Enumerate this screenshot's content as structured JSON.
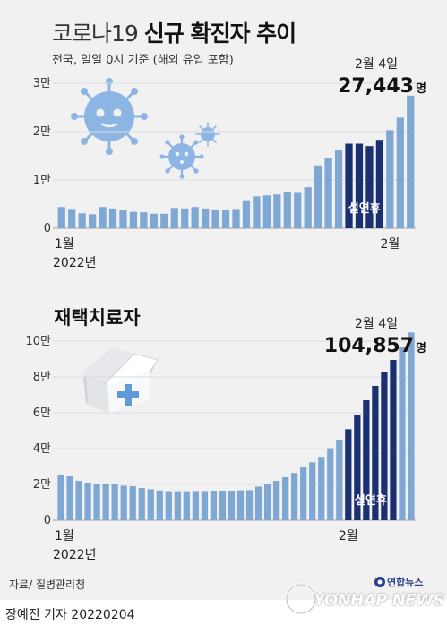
{
  "header": {
    "title_light": "코로나19",
    "title_bold": "신규 확진자 추이",
    "subtitle": "전국, 일일 0시 기준 (해외 유입 포함)"
  },
  "footer": {
    "source": "자료/ 질병관리청",
    "reporter": "장예진 기자  20220204",
    "logo_ko": "연합뉴스",
    "logo_en": "YONHAP NEWS"
  },
  "colors": {
    "background": "#f1f1f2",
    "bar_light": "#7fa7d4",
    "bar_holiday": "#1b3070",
    "badge_text": "#ffffff",
    "grid": "#d9dbde"
  },
  "icons": [
    "virus-icon",
    "house-cross-icon",
    "yonhap-logo-icon"
  ],
  "chart_data": [
    {
      "type": "bar",
      "title": "",
      "x_labels": [
        {
          "label": "1월",
          "index": 0
        },
        {
          "label": "2월",
          "index": 32
        }
      ],
      "year_label": "2022년",
      "ylabel": "",
      "y_ticks": [
        {
          "value": 0,
          "label": "0"
        },
        {
          "value": 10000,
          "label": "1만"
        },
        {
          "value": 20000,
          "label": "2만"
        },
        {
          "value": 30000,
          "label": "3만"
        }
      ],
      "ylim": [
        0,
        30000
      ],
      "grid": true,
      "values": [
        4400,
        4000,
        3100,
        2900,
        4400,
        4100,
        3700,
        3400,
        3300,
        3000,
        3000,
        4200,
        4100,
        4400,
        4100,
        3900,
        3800,
        4000,
        5800,
        6600,
        6800,
        7000,
        7600,
        7500,
        8500,
        13000,
        14500,
        16100,
        17500,
        17500,
        17000,
        18300,
        20300,
        22900,
        27443
      ],
      "holiday_range": [
        28,
        31
      ],
      "holiday_label": "설연휴",
      "annotation": {
        "index": 34,
        "date": "2월 4일",
        "value": "27,443",
        "unit": "명"
      }
    },
    {
      "type": "bar",
      "title": "재택치료자",
      "x_labels": [
        {
          "label": "1월",
          "index": 0
        },
        {
          "label": "2월",
          "index": 32
        }
      ],
      "year_label": "2022년",
      "ylabel": "",
      "y_ticks": [
        {
          "value": 0,
          "label": "0"
        },
        {
          "value": 20000,
          "label": "2만"
        },
        {
          "value": 40000,
          "label": "4만"
        },
        {
          "value": 60000,
          "label": "6만"
        },
        {
          "value": 80000,
          "label": "8만"
        },
        {
          "value": 100000,
          "label": "10만"
        }
      ],
      "ylim": [
        0,
        100000
      ],
      "grid": true,
      "values": [
        25500,
        24500,
        22000,
        21000,
        20500,
        20300,
        20000,
        19300,
        19000,
        18000,
        17300,
        16600,
        16200,
        16200,
        16200,
        16300,
        16300,
        16500,
        16500,
        16500,
        16700,
        16800,
        18800,
        20200,
        22000,
        24000,
        26400,
        30000,
        32300,
        35400,
        40200,
        45000,
        50800,
        58800,
        67000,
        75000,
        82500,
        89500,
        97000,
        104857
      ],
      "holiday_range": [
        32,
        37
      ],
      "holiday_label": "설연휴",
      "annotation": {
        "index": 39,
        "date": "2월 4일",
        "value": "104,857",
        "unit": "명"
      }
    }
  ]
}
